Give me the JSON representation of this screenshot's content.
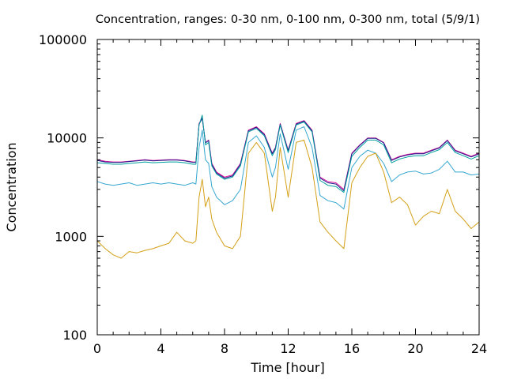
{
  "chart_data": {
    "type": "line",
    "title": "Concentration, ranges: 0-30 nm, 0-100 nm, 0-300 nm, total (5/9/1)",
    "xlabel": "Time [hour]",
    "ylabel": "Concentration",
    "xlim": [
      0,
      24
    ],
    "ylim": [
      100,
      100000
    ],
    "y_scale": "log",
    "x_ticks": [
      0,
      4,
      8,
      12,
      16,
      20,
      24
    ],
    "x_tick_labels": [
      "0",
      "4",
      "8",
      "12",
      "16",
      "20",
      "24"
    ],
    "y_ticks": [
      100,
      1000,
      10000,
      100000
    ],
    "y_tick_labels": [
      "100",
      "1000",
      "10000",
      "100000"
    ],
    "grid": false,
    "legend": "none",
    "x": [
      0,
      0.5,
      1,
      1.5,
      2,
      2.5,
      3,
      3.5,
      4,
      4.5,
      5,
      5.5,
      6,
      6.2,
      6.4,
      6.6,
      6.8,
      7,
      7.2,
      7.5,
      8,
      8.5,
      9,
      9.5,
      10,
      10.5,
      11,
      11.2,
      11.5,
      12,
      12.5,
      13,
      13.5,
      14,
      14.5,
      15,
      15.5,
      16,
      16.5,
      17,
      17.5,
      18,
      18.5,
      19,
      19.5,
      20,
      20.5,
      21,
      21.5,
      22,
      22.5,
      23,
      23.5,
      24
    ],
    "series": [
      {
        "color": "#e0109a",
        "values": [
          6000,
          5800,
          5700,
          5700,
          5800,
          5900,
          6000,
          5900,
          5950,
          6000,
          6000,
          5900,
          5700,
          5700,
          14000,
          16000,
          9000,
          9500,
          5500,
          4500,
          4000,
          4200,
          5500,
          12000,
          13000,
          11000,
          7000,
          8000,
          14000,
          7500,
          14000,
          15000,
          12000,
          4000,
          3600,
          3500,
          3000,
          7000,
          8500,
          10000,
          10000,
          9000,
          6000,
          6500,
          6800,
          7000,
          7000,
          7500,
          8000,
          9500,
          7500,
          7000,
          6500,
          7000
        ]
      },
      {
        "color": "#1f1f8c",
        "values": [
          5900,
          5700,
          5650,
          5650,
          5750,
          5850,
          5950,
          5850,
          5900,
          5950,
          5950,
          5850,
          5650,
          5650,
          13800,
          15800,
          8900,
          9400,
          5400,
          4400,
          3900,
          4100,
          5400,
          11800,
          12800,
          10800,
          6900,
          7900,
          13800,
          7400,
          13800,
          14800,
          11800,
          3900,
          3500,
          3400,
          2900,
          6900,
          8400,
          9900,
          9900,
          8900,
          5900,
          6400,
          6700,
          6900,
          6900,
          7400,
          7900,
          9400,
          7400,
          6900,
          6400,
          6900
        ]
      },
      {
        "color": "#009e9e",
        "values": [
          5600,
          5500,
          5400,
          5400,
          5500,
          5600,
          5700,
          5600,
          5650,
          5700,
          5700,
          5600,
          5400,
          5400,
          13500,
          17000,
          8500,
          9000,
          5200,
          4300,
          3800,
          4000,
          5200,
          11500,
          12500,
          10500,
          6600,
          7600,
          13500,
          7100,
          13500,
          14500,
          11500,
          3700,
          3300,
          3200,
          2800,
          6500,
          8000,
          9500,
          9500,
          8500,
          5600,
          6100,
          6400,
          6600,
          6600,
          7100,
          7600,
          9000,
          7100,
          6600,
          6100,
          6600
        ]
      },
      {
        "color": "#35a7d0",
        "values": [
          3600,
          3400,
          3300,
          3400,
          3500,
          3300,
          3400,
          3500,
          3400,
          3500,
          3400,
          3300,
          3500,
          3400,
          8000,
          12000,
          6000,
          5500,
          3200,
          2500,
          2100,
          2300,
          3000,
          9000,
          10500,
          8000,
          4000,
          5000,
          11000,
          4800,
          12000,
          13000,
          8000,
          2600,
          2300,
          2200,
          1900,
          5000,
          6500,
          7500,
          7000,
          5500,
          3600,
          4200,
          4500,
          4600,
          4300,
          4400,
          4800,
          5800,
          4500,
          4500,
          4200,
          4300
        ]
      },
      {
        "color": "#d4a017",
        "values": [
          900,
          750,
          650,
          600,
          700,
          680,
          720,
          750,
          800,
          850,
          1100,
          900,
          850,
          900,
          2500,
          3800,
          2000,
          2500,
          1500,
          1100,
          800,
          750,
          1000,
          7000,
          9000,
          7000,
          1800,
          2500,
          8000,
          2500,
          9000,
          9500,
          5000,
          1400,
          1100,
          900,
          750,
          3500,
          5000,
          6500,
          7000,
          4500,
          2200,
          2500,
          2100,
          1300,
          1600,
          1800,
          1700,
          3000,
          1800,
          1500,
          1200,
          1400
        ]
      }
    ]
  }
}
